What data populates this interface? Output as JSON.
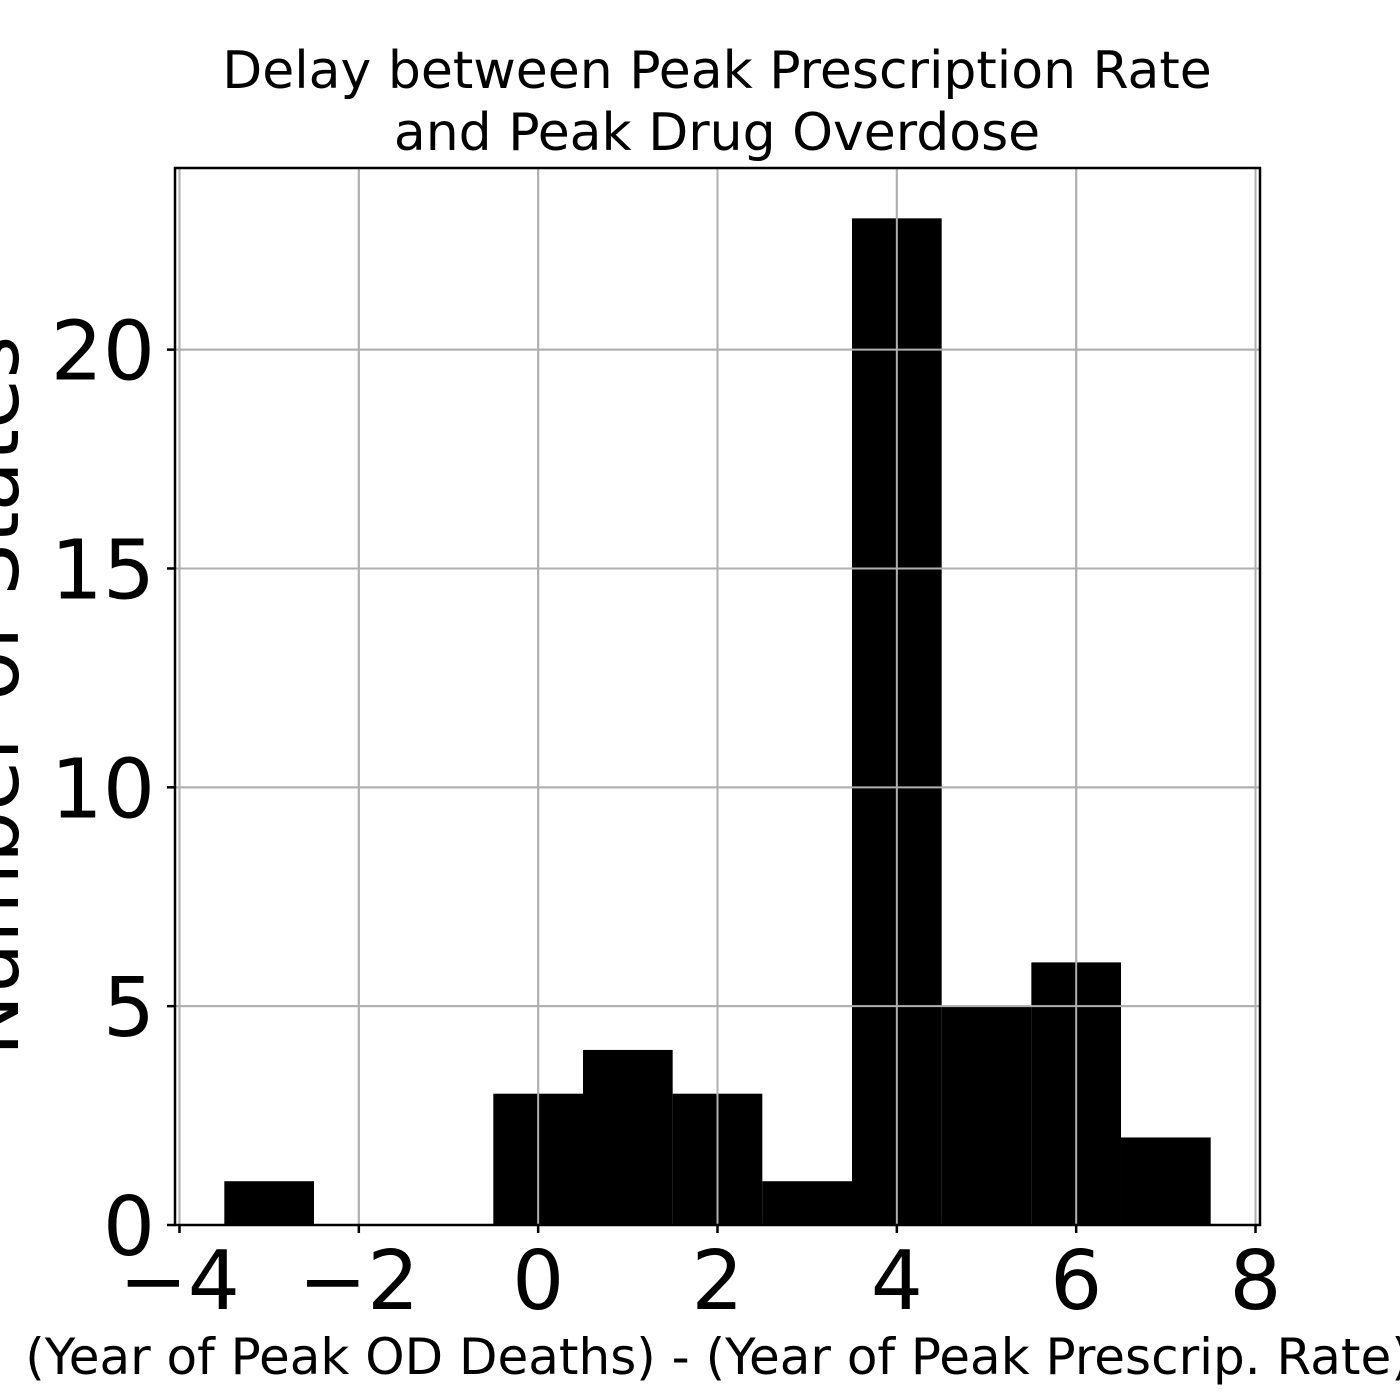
{
  "chart_data": {
    "type": "bar",
    "title_lines": [
      "Delay between Peak Prescription Rate",
      "and Peak Drug Overdose"
    ],
    "xlabel": "(Year of Peak OD Deaths) - (Year of Peak Prescrip. Rate)",
    "ylabel": "Number of States",
    "xlim": [
      -4.05,
      8.05
    ],
    "ylim": [
      0,
      24.15
    ],
    "grid": true,
    "bar_color": "#000000",
    "grid_color": "#b0b0b0",
    "bin_width": 1,
    "bins": [
      {
        "center": -3,
        "count": 1
      },
      {
        "center": -2,
        "count": 0
      },
      {
        "center": -1,
        "count": 0
      },
      {
        "center": 0,
        "count": 3
      },
      {
        "center": 1,
        "count": 4
      },
      {
        "center": 2,
        "count": 3
      },
      {
        "center": 3,
        "count": 1
      },
      {
        "center": 4,
        "count": 23
      },
      {
        "center": 5,
        "count": 5
      },
      {
        "center": 6,
        "count": 6
      },
      {
        "center": 7,
        "count": 2
      }
    ],
    "x_ticks": [
      {
        "value": -4,
        "label": "−4"
      },
      {
        "value": -2,
        "label": "−2"
      },
      {
        "value": 0,
        "label": "0"
      },
      {
        "value": 2,
        "label": "2"
      },
      {
        "value": 4,
        "label": "4"
      },
      {
        "value": 6,
        "label": "6"
      },
      {
        "value": 8,
        "label": "8"
      }
    ],
    "y_ticks": [
      {
        "value": 0,
        "label": "0"
      },
      {
        "value": 5,
        "label": "5"
      },
      {
        "value": 10,
        "label": "10"
      },
      {
        "value": 15,
        "label": "15"
      },
      {
        "value": 20,
        "label": "20"
      }
    ]
  }
}
